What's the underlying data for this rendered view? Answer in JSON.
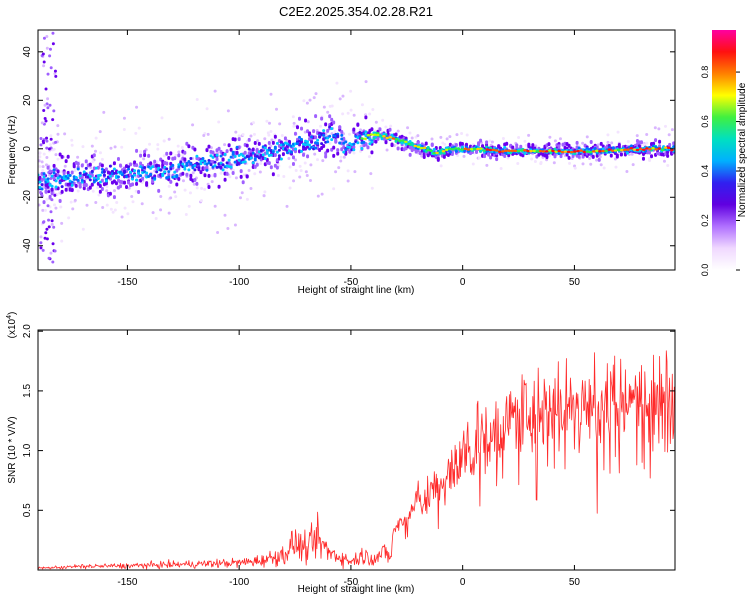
{
  "figure": {
    "title": "C2E2.2025.354.02.28.R21"
  },
  "chart_data": [
    {
      "type": "heatmap",
      "name": "spectrogram",
      "xlabel": "Height of straight line (km)",
      "ylabel": "Frequency (Hz)",
      "xlim": [
        -190,
        95
      ],
      "ylim": [
        -50,
        49
      ],
      "xticks": [
        -150,
        -100,
        -50,
        0,
        50
      ],
      "yticks": [
        -40,
        -20,
        0,
        20,
        40
      ],
      "colorbar": {
        "label": "Normalized spectral amplitude",
        "range": [
          0,
          0.97
        ],
        "ticks": [
          0.0,
          0.2,
          0.4,
          0.6,
          0.8
        ],
        "colors": [
          "#ffffff",
          "#f0d8ff",
          "#b070ff",
          "#6000e0",
          "#3020f0",
          "#00b0ff",
          "#00e0c0",
          "#40f040",
          "#ffff00",
          "#ff8000",
          "#ff1010",
          "#ff00a0"
        ]
      },
      "ridge_frequency": {
        "x": [
          -186,
          -175,
          -165,
          -155,
          -145,
          -135,
          -125,
          -115,
          -105,
          -95,
          -85,
          -75,
          -65,
          -58,
          -52,
          -48,
          -40,
          -30,
          -20,
          -12,
          -5,
          5,
          20,
          40,
          60,
          80,
          94
        ],
        "y": [
          -13,
          -12,
          -11,
          -11,
          -10,
          -9,
          -8,
          -6,
          -5,
          -3,
          -1,
          1,
          3,
          7,
          1,
          3,
          6,
          4,
          1,
          -2,
          0,
          0,
          -1,
          -1,
          -1,
          0,
          0
        ]
      }
    },
    {
      "type": "line",
      "name": "snr",
      "xlabel": "Height of straight line (km)",
      "ylabel": "SNR (10 * V/V)",
      "scale_label": "(x10",
      "scale_exponent": "4",
      "scale_close": ")",
      "xlim": [
        -190,
        95
      ],
      "ylim": [
        0,
        20100
      ],
      "xticks": [
        -150,
        -100,
        -50,
        0,
        50
      ],
      "yticks": [
        5000,
        10000,
        15000,
        20000
      ],
      "ytick_labels": [
        "0.5",
        "1.0",
        "1.5",
        "2.0"
      ],
      "color": "#ff2a2a",
      "envelope": {
        "x": [
          -190,
          -170,
          -150,
          -130,
          -110,
          -100,
          -90,
          -80,
          -75,
          -70,
          -65,
          -60,
          -55,
          -50,
          -45,
          -40,
          -35,
          -32,
          -31,
          -25,
          -20,
          -15,
          -10,
          -5,
          0,
          5,
          10,
          20,
          30,
          40,
          50,
          60,
          70,
          80,
          90,
          95
        ],
        "y": [
          150,
          300,
          350,
          450,
          550,
          600,
          800,
          1300,
          2300,
          1700,
          2600,
          1500,
          1100,
          700,
          1200,
          1000,
          1400,
          1100,
          3300,
          4200,
          5800,
          6300,
          7200,
          8200,
          9300,
          10300,
          11000,
          12200,
          13100,
          13800,
          13900,
          13700,
          13900,
          14000,
          14200,
          14600
        ]
      }
    }
  ]
}
